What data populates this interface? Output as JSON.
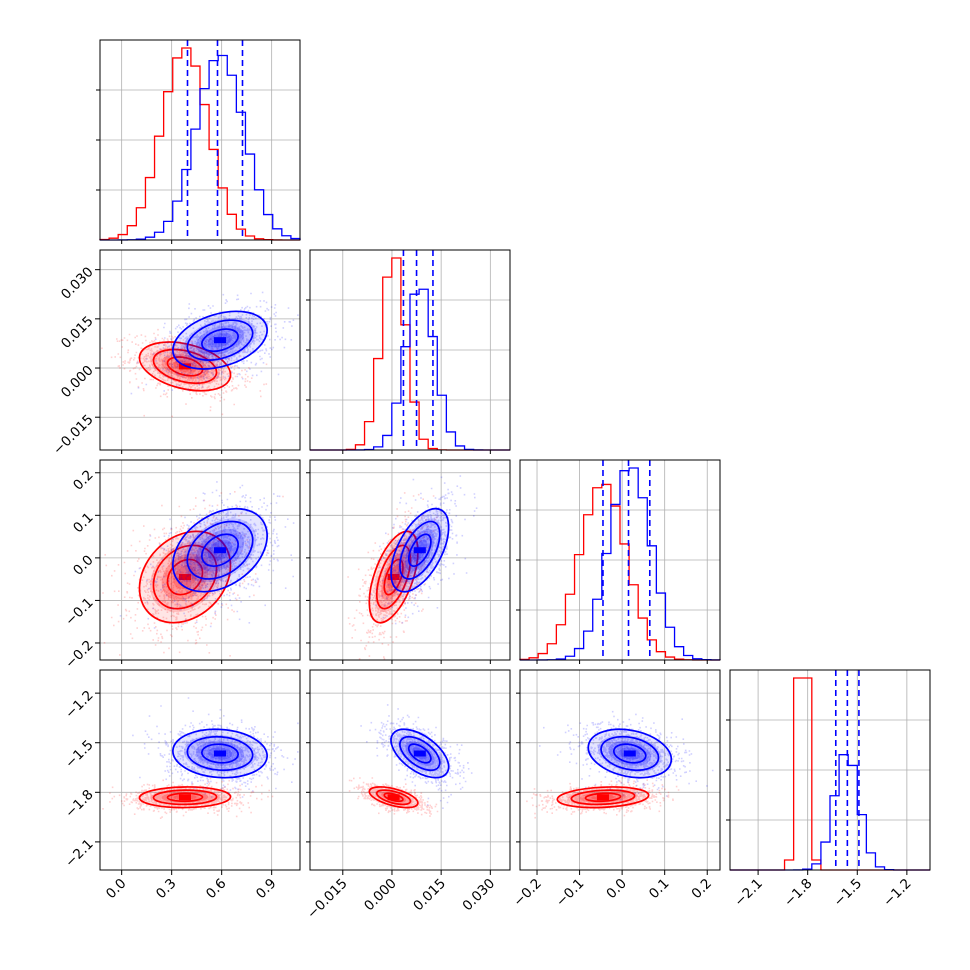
{
  "chart_data": {
    "type": "corner",
    "parameters": 4,
    "grid": true,
    "legend": "none",
    "series": [
      {
        "color": "#ff0000",
        "means": [
          0.38,
          0.0005,
          -0.045,
          -1.83
        ],
        "sds": [
          0.14,
          0.0038,
          0.055,
          0.032
        ],
        "corr": [
          [
            1,
            -0.35,
            0.25,
            0.05
          ],
          [
            -0.35,
            1,
            0.55,
            -0.55
          ],
          [
            0.25,
            0.55,
            1,
            0.2
          ],
          [
            0.05,
            -0.55,
            0.2,
            1
          ]
        ]
      },
      {
        "color": "#0000ff",
        "means": [
          0.59,
          0.0085,
          0.018,
          -1.565
        ],
        "sds": [
          0.145,
          0.0045,
          0.05,
          0.075
        ],
        "corr": [
          [
            1,
            0.35,
            0.35,
            -0.1
          ],
          [
            0.35,
            1,
            0.55,
            -0.55
          ],
          [
            0.35,
            0.55,
            1,
            -0.25
          ],
          [
            -0.1,
            -0.55,
            -0.25,
            1
          ]
        ],
        "quantiles": [
          [
            0.395,
            0.575,
            0.725
          ],
          [
            0.0035,
            0.0075,
            0.0125
          ],
          [
            -0.045,
            0.015,
            0.065
          ],
          [
            -1.63,
            -1.56,
            -1.49
          ]
        ]
      }
    ],
    "ranges": [
      [
        -0.13,
        1.07
      ],
      [
        -0.025,
        0.036
      ],
      [
        -0.24,
        0.23
      ],
      [
        -2.27,
        -1.06
      ]
    ],
    "ticks": [
      {
        "values": [
          0.0,
          0.3,
          0.6,
          0.9
        ],
        "labels": [
          "0.0",
          "0.3",
          "0.6",
          "0.9"
        ]
      },
      {
        "values": [
          -0.015,
          0.0,
          0.015,
          0.03
        ],
        "labels": [
          "−0.015",
          "0.000",
          "0.015",
          "0.030"
        ]
      },
      {
        "values": [
          -0.2,
          -0.1,
          0.0,
          0.1,
          0.2
        ],
        "labels": [
          "−0.2",
          "−0.1",
          "0.0",
          "0.1",
          "0.2"
        ]
      },
      {
        "values": [
          -2.1,
          -1.8,
          -1.5,
          -1.2
        ],
        "labels": [
          "−2.1",
          "−1.8",
          "−1.5",
          "−1.2"
        ]
      }
    ]
  }
}
